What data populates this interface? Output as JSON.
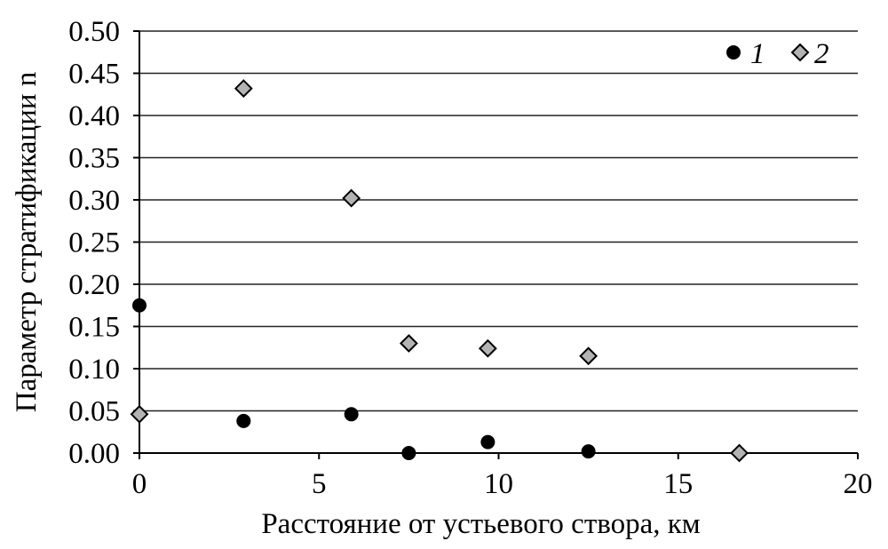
{
  "chart_data": {
    "type": "scatter",
    "xlabel": "Расстояние от устьевого створа, км",
    "ylabel": "Параметр стратификации n",
    "xlim": [
      0,
      20
    ],
    "ylim": [
      0,
      0.5
    ],
    "x_ticks": [
      "0",
      "5",
      "10",
      "15",
      "20"
    ],
    "y_ticks": [
      "0.00",
      "0.05",
      "0.10",
      "0.15",
      "0.20",
      "0.25",
      "0.30",
      "0.35",
      "0.40",
      "0.45",
      "0.50"
    ],
    "grid": "horizontal",
    "legend_position": "top-right",
    "series": [
      {
        "name": "1",
        "marker": "circle",
        "color": "#000000",
        "points": [
          {
            "x": 0,
            "y": 0.175
          },
          {
            "x": 2.9,
            "y": 0.038
          },
          {
            "x": 5.9,
            "y": 0.046
          },
          {
            "x": 7.5,
            "y": 0.0
          },
          {
            "x": 9.7,
            "y": 0.013
          },
          {
            "x": 12.5,
            "y": 0.002
          }
        ]
      },
      {
        "name": "2",
        "marker": "diamond",
        "color": "#b3b3b3",
        "points": [
          {
            "x": 0,
            "y": 0.046
          },
          {
            "x": 2.9,
            "y": 0.432
          },
          {
            "x": 5.9,
            "y": 0.302
          },
          {
            "x": 7.5,
            "y": 0.13
          },
          {
            "x": 9.7,
            "y": 0.124
          },
          {
            "x": 12.5,
            "y": 0.115
          },
          {
            "x": 16.7,
            "y": 0.0
          }
        ]
      }
    ]
  }
}
